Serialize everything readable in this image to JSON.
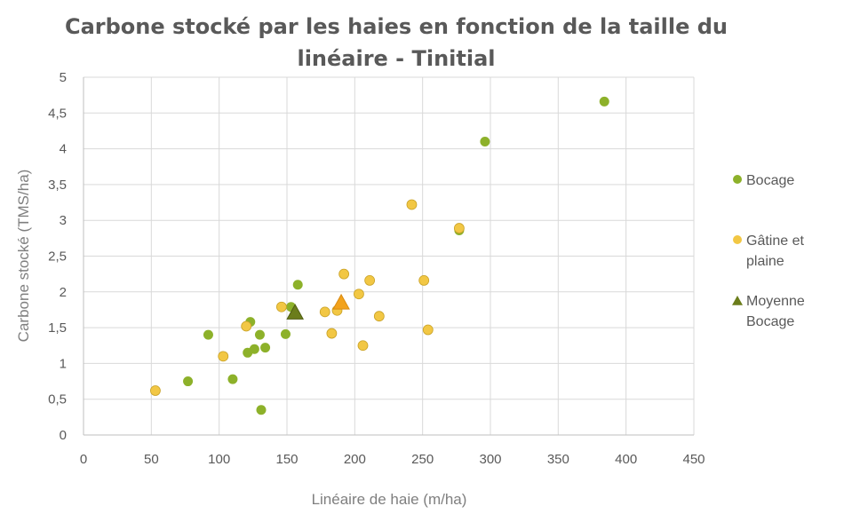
{
  "chart_data": {
    "type": "scatter",
    "title_lines": [
      "Carbone stocké par les haies en fonction de la taille du",
      "linéaire - Tinitial"
    ],
    "xlabel": "Linéaire de haie (m/ha)",
    "ylabel": "Carbone stocké (TMS/ha)",
    "xlim": [
      0,
      450
    ],
    "ylim": [
      0,
      5
    ],
    "x_ticks": [
      "0",
      "50",
      "100",
      "150",
      "200",
      "250",
      "300",
      "350",
      "400",
      "450"
    ],
    "y_ticks": [
      "0",
      "0,5",
      "1",
      "1,5",
      "2",
      "2,5",
      "3",
      "3,5",
      "4",
      "4,5",
      "5"
    ],
    "grid": true,
    "legend_position": "right",
    "series": [
      {
        "name": "Bocage",
        "color": "#8db12a",
        "marker": "circle",
        "points": [
          [
            77,
            0.75
          ],
          [
            92,
            1.4
          ],
          [
            110,
            0.78
          ],
          [
            121,
            1.15
          ],
          [
            123,
            1.58
          ],
          [
            126,
            1.2
          ],
          [
            130,
            1.4
          ],
          [
            131,
            0.35
          ],
          [
            134,
            1.22
          ],
          [
            149,
            1.41
          ],
          [
            153,
            1.79
          ],
          [
            158,
            2.1
          ],
          [
            277,
            2.86
          ],
          [
            296,
            4.1
          ],
          [
            384,
            4.66
          ]
        ]
      },
      {
        "name": "Gâtine et plaine",
        "color": "#f2c744",
        "marker": "circle",
        "points": [
          [
            53,
            0.62
          ],
          [
            103,
            1.1
          ],
          [
            120,
            1.52
          ],
          [
            146,
            1.79
          ],
          [
            178,
            1.72
          ],
          [
            183,
            1.42
          ],
          [
            187,
            1.74
          ],
          [
            192,
            2.25
          ],
          [
            203,
            1.97
          ],
          [
            206,
            1.25
          ],
          [
            211,
            2.16
          ],
          [
            218,
            1.66
          ],
          [
            242,
            3.22
          ],
          [
            251,
            2.16
          ],
          [
            254,
            1.47
          ],
          [
            277,
            2.89
          ]
        ]
      },
      {
        "name": "Moyenne Bocage",
        "color": "#6b7d1b",
        "marker": "triangle",
        "points": []
      }
    ],
    "mean_markers": [
      {
        "series": "Bocage",
        "x": 156,
        "y": 1.71,
        "color": "#6b7d1b"
      },
      {
        "series": "Gâtine et plaine",
        "x": 190,
        "y": 1.85,
        "color": "#f2a21c"
      }
    ],
    "legend_lines": [
      [
        "Bocage"
      ],
      [
        "Gâtine et",
        "plaine"
      ],
      [
        "Moyenne",
        "Bocage"
      ]
    ]
  }
}
